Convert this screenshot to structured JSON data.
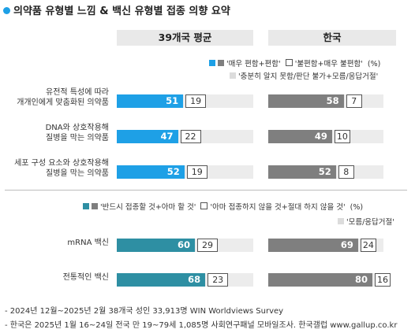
{
  "title": "의약품 유형별 느낌 & 백신 유형별 접종 의향 요약",
  "columns": [
    "39개국 평균",
    "한국"
  ],
  "colors": {
    "title_dot": "#1ea0e6",
    "positive_global": "#1ea0e6",
    "positive_korea": "#7f7f7f",
    "vaccine_bar": "#2e8fa3",
    "rest": "#ececec"
  },
  "legend1": {
    "positive": "'매우 편함+편함'",
    "negative": "'불편함+매우 불편함'",
    "unit": "(%)",
    "other": "'충분히 알지 못함/판단 불가+모름/응답거절'"
  },
  "legend2": {
    "positive": "'반드시 접종할 것+아마 할 것'",
    "negative": "'아마 접종하지 않을 것+절대 하지 않을 것'",
    "unit": "(%)",
    "other": "'모름/응답거절'"
  },
  "chart_data": [
    {
      "type": "bar",
      "title": "의약품 유형별 느낌",
      "categories": [
        "유전적 특성에 따라 개개인에게 맞춤화된 의약품",
        "DNA와 상호작용해 질병을 막는 의약품",
        "세포 구성 요소와 상호작용해 질병을 막는 의약품"
      ],
      "category_lines": [
        [
          "유전적 특성에 따라",
          "개개인에게 맞춤화된 의약품"
        ],
        [
          "DNA와 상호작용해",
          "질병을 막는 의약품"
        ],
        [
          "세포 구성 요소와 상호작용해",
          "질병을 막는 의약품"
        ]
      ],
      "series": [
        {
          "name": "39개국 평균 '매우 편함+편함'",
          "values": [
            51,
            47,
            52
          ]
        },
        {
          "name": "39개국 평균 '불편함+매우 불편함'",
          "values": [
            19,
            22,
            19
          ]
        },
        {
          "name": "한국 '매우 편함+편함'",
          "values": [
            58,
            49,
            52
          ]
        },
        {
          "name": "한국 '불편함+매우 불편함'",
          "values": [
            7,
            10,
            8
          ]
        }
      ]
    },
    {
      "type": "bar",
      "title": "백신 유형별 접종 의향",
      "categories": [
        "mRNA 백신",
        "전통적인 백신"
      ],
      "series": [
        {
          "name": "39개국 평균 '반드시 접종할 것+아마 할 것'",
          "values": [
            60,
            68
          ]
        },
        {
          "name": "39개국 평균 '아마 접종하지 않을 것+절대 하지 않을 것'",
          "values": [
            29,
            23
          ]
        },
        {
          "name": "한국 '반드시 접종할 것+아마 할 것'",
          "values": [
            69,
            80
          ]
        },
        {
          "name": "한국 '아마 접종하지 않을 것+절대 하지 않을 것'",
          "values": [
            24,
            16
          ]
        }
      ]
    }
  ],
  "notes": [
    "- 2024년 12월~2025년 2월 38개국 성인 33,913명 WIN Worldviews Survey",
    "- 한국은 2025년 1월 16~24일 전국 만 19~79세 1,085명 사회연구패널 모바일조사. 한국갤럽 www.gallup.co.kr"
  ]
}
